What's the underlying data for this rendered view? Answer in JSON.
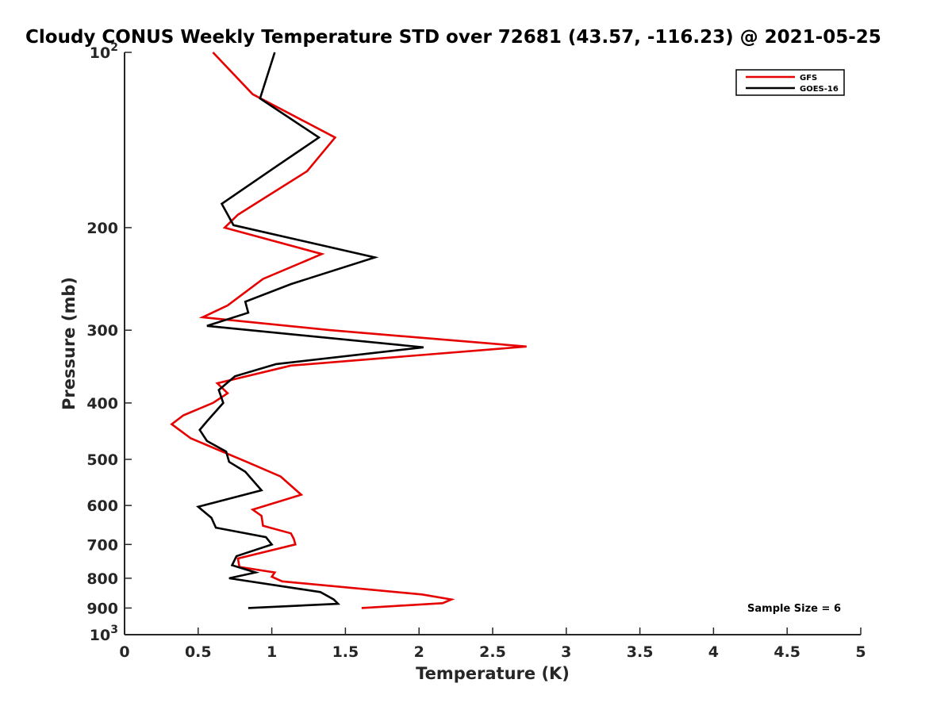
{
  "chart_data": {
    "type": "line",
    "title": "Cloudy CONUS Weekly Temperature STD over 72681 (43.57, -116.23) @ 2021-05-25",
    "xlabel": "Temperature (K)",
    "ylabel": "Pressure (mb)",
    "xlim": [
      0,
      5
    ],
    "ylim": [
      100,
      1000
    ],
    "y_scale": "log",
    "y_reversed": true,
    "grid": false,
    "legend_position": "top-right",
    "x_ticks": [
      0,
      0.5,
      1,
      1.5,
      2,
      2.5,
      3,
      3.5,
      4,
      4.5,
      5
    ],
    "x_tick_labels": [
      "0",
      "0.5",
      "1",
      "1.5",
      "2",
      "2.5",
      "3",
      "3.5",
      "4",
      "4.5",
      "5"
    ],
    "y_ticks": [
      100,
      200,
      300,
      400,
      500,
      600,
      700,
      800,
      900,
      1000
    ],
    "y_tick_labels": [
      {
        "base": "10",
        "exp": "2"
      },
      {
        "base": "200",
        "exp": ""
      },
      {
        "base": "300",
        "exp": ""
      },
      {
        "base": "400",
        "exp": ""
      },
      {
        "base": "500",
        "exp": ""
      },
      {
        "base": "600",
        "exp": ""
      },
      {
        "base": "700",
        "exp": ""
      },
      {
        "base": "800",
        "exp": ""
      },
      {
        "base": "900",
        "exp": ""
      },
      {
        "base": "10",
        "exp": "3"
      }
    ],
    "series": [
      {
        "name": "GFS",
        "color": "#e60000",
        "points": [
          [
            0.6,
            100
          ],
          [
            0.87,
            118
          ],
          [
            1.43,
            140
          ],
          [
            1.24,
            160
          ],
          [
            0.77,
            190
          ],
          [
            0.68,
            200
          ],
          [
            1.34,
            222
          ],
          [
            0.94,
            245
          ],
          [
            0.7,
            272
          ],
          [
            0.53,
            285
          ],
          [
            1.4,
            300
          ],
          [
            2.73,
            320
          ],
          [
            1.13,
            345
          ],
          [
            0.63,
            370
          ],
          [
            0.7,
            385
          ],
          [
            0.6,
            400
          ],
          [
            0.4,
            420
          ],
          [
            0.32,
            435
          ],
          [
            0.45,
            460
          ],
          [
            0.83,
            505
          ],
          [
            1.06,
            535
          ],
          [
            1.2,
            575
          ],
          [
            0.87,
            610
          ],
          [
            0.93,
            625
          ],
          [
            0.94,
            650
          ],
          [
            1.13,
            670
          ],
          [
            1.15,
            685
          ],
          [
            1.16,
            700
          ],
          [
            0.77,
            740
          ],
          [
            0.78,
            765
          ],
          [
            1.02,
            782
          ],
          [
            1.0,
            795
          ],
          [
            1.07,
            810
          ],
          [
            2.02,
            853
          ],
          [
            2.22,
            870
          ],
          [
            2.16,
            883
          ],
          [
            1.61,
            900
          ]
        ]
      },
      {
        "name": "GOES-16",
        "color": "#000000",
        "points": [
          [
            1.02,
            100
          ],
          [
            0.92,
            120
          ],
          [
            1.32,
            140
          ],
          [
            1.03,
            157
          ],
          [
            0.66,
            182
          ],
          [
            0.74,
            198
          ],
          [
            1.7,
            225
          ],
          [
            1.13,
            250
          ],
          [
            0.82,
            268
          ],
          [
            0.84,
            280
          ],
          [
            0.56,
            295
          ],
          [
            2.03,
            321
          ],
          [
            1.03,
            343
          ],
          [
            0.75,
            360
          ],
          [
            0.64,
            380
          ],
          [
            0.67,
            400
          ],
          [
            0.56,
            430
          ],
          [
            0.51,
            445
          ],
          [
            0.56,
            465
          ],
          [
            0.69,
            485
          ],
          [
            0.71,
            505
          ],
          [
            0.82,
            525
          ],
          [
            0.93,
            565
          ],
          [
            0.5,
            603
          ],
          [
            0.59,
            630
          ],
          [
            0.62,
            655
          ],
          [
            0.96,
            680
          ],
          [
            1.0,
            700
          ],
          [
            0.76,
            733
          ],
          [
            0.73,
            760
          ],
          [
            0.89,
            782
          ],
          [
            0.71,
            800
          ],
          [
            1.33,
            845
          ],
          [
            1.42,
            870
          ],
          [
            1.45,
            885
          ],
          [
            0.84,
            900
          ]
        ]
      }
    ],
    "annotations": [
      {
        "text": "Sample Size = 6",
        "position": "bottom-right"
      }
    ]
  }
}
